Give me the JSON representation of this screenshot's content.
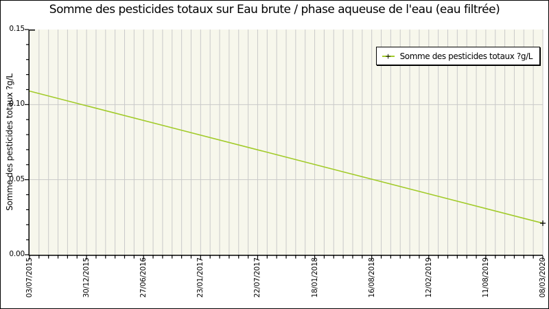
{
  "chart_data": {
    "type": "line",
    "title": "Somme des pesticides totaux sur Eau brute / phase aqueuse de l'eau (eau filtrée)",
    "ylabel": "Somme des pesticides totaux ?g/L",
    "xlabel": "",
    "legend": {
      "label": "Somme des pesticides totaux ?g/L",
      "position": "top-right"
    },
    "ylim": [
      0,
      0.15
    ],
    "y_major_ticks": [
      0.0,
      0.05,
      0.1,
      0.15
    ],
    "y_tick_labels": [
      "0.00",
      "0.05",
      "0.10",
      "0.15"
    ],
    "y_minor_step": 0.01,
    "y_gridline_values": [
      0.05,
      0.1
    ],
    "x_tick_labels": [
      "03/07/2015",
      "30/12/2015",
      "27/06/2016",
      "23/01/2017",
      "22/07/2017",
      "18/01/2018",
      "16/08/2018",
      "12/02/2019",
      "11/08/2019",
      "08/03/2020"
    ],
    "x_minor_per_major": 6,
    "grid": true,
    "series": [
      {
        "name": "Somme des pesticides totaux ?g/L",
        "color": "#a2cb2a",
        "marker": "+",
        "marker_color": "#000000",
        "points": [
          {
            "x": "03/07/2015",
            "y": 0.109
          },
          {
            "x": "08/03/2020",
            "y": 0.021
          }
        ],
        "marker_points": [
          {
            "x": "08/03/2020",
            "y": 0.021
          }
        ]
      }
    ],
    "colors": {
      "plot_background": "#f7f7ec",
      "grid": "#c9c9c9",
      "axis": "#000000",
      "text": "#111111",
      "frame_border": "#000000"
    }
  }
}
